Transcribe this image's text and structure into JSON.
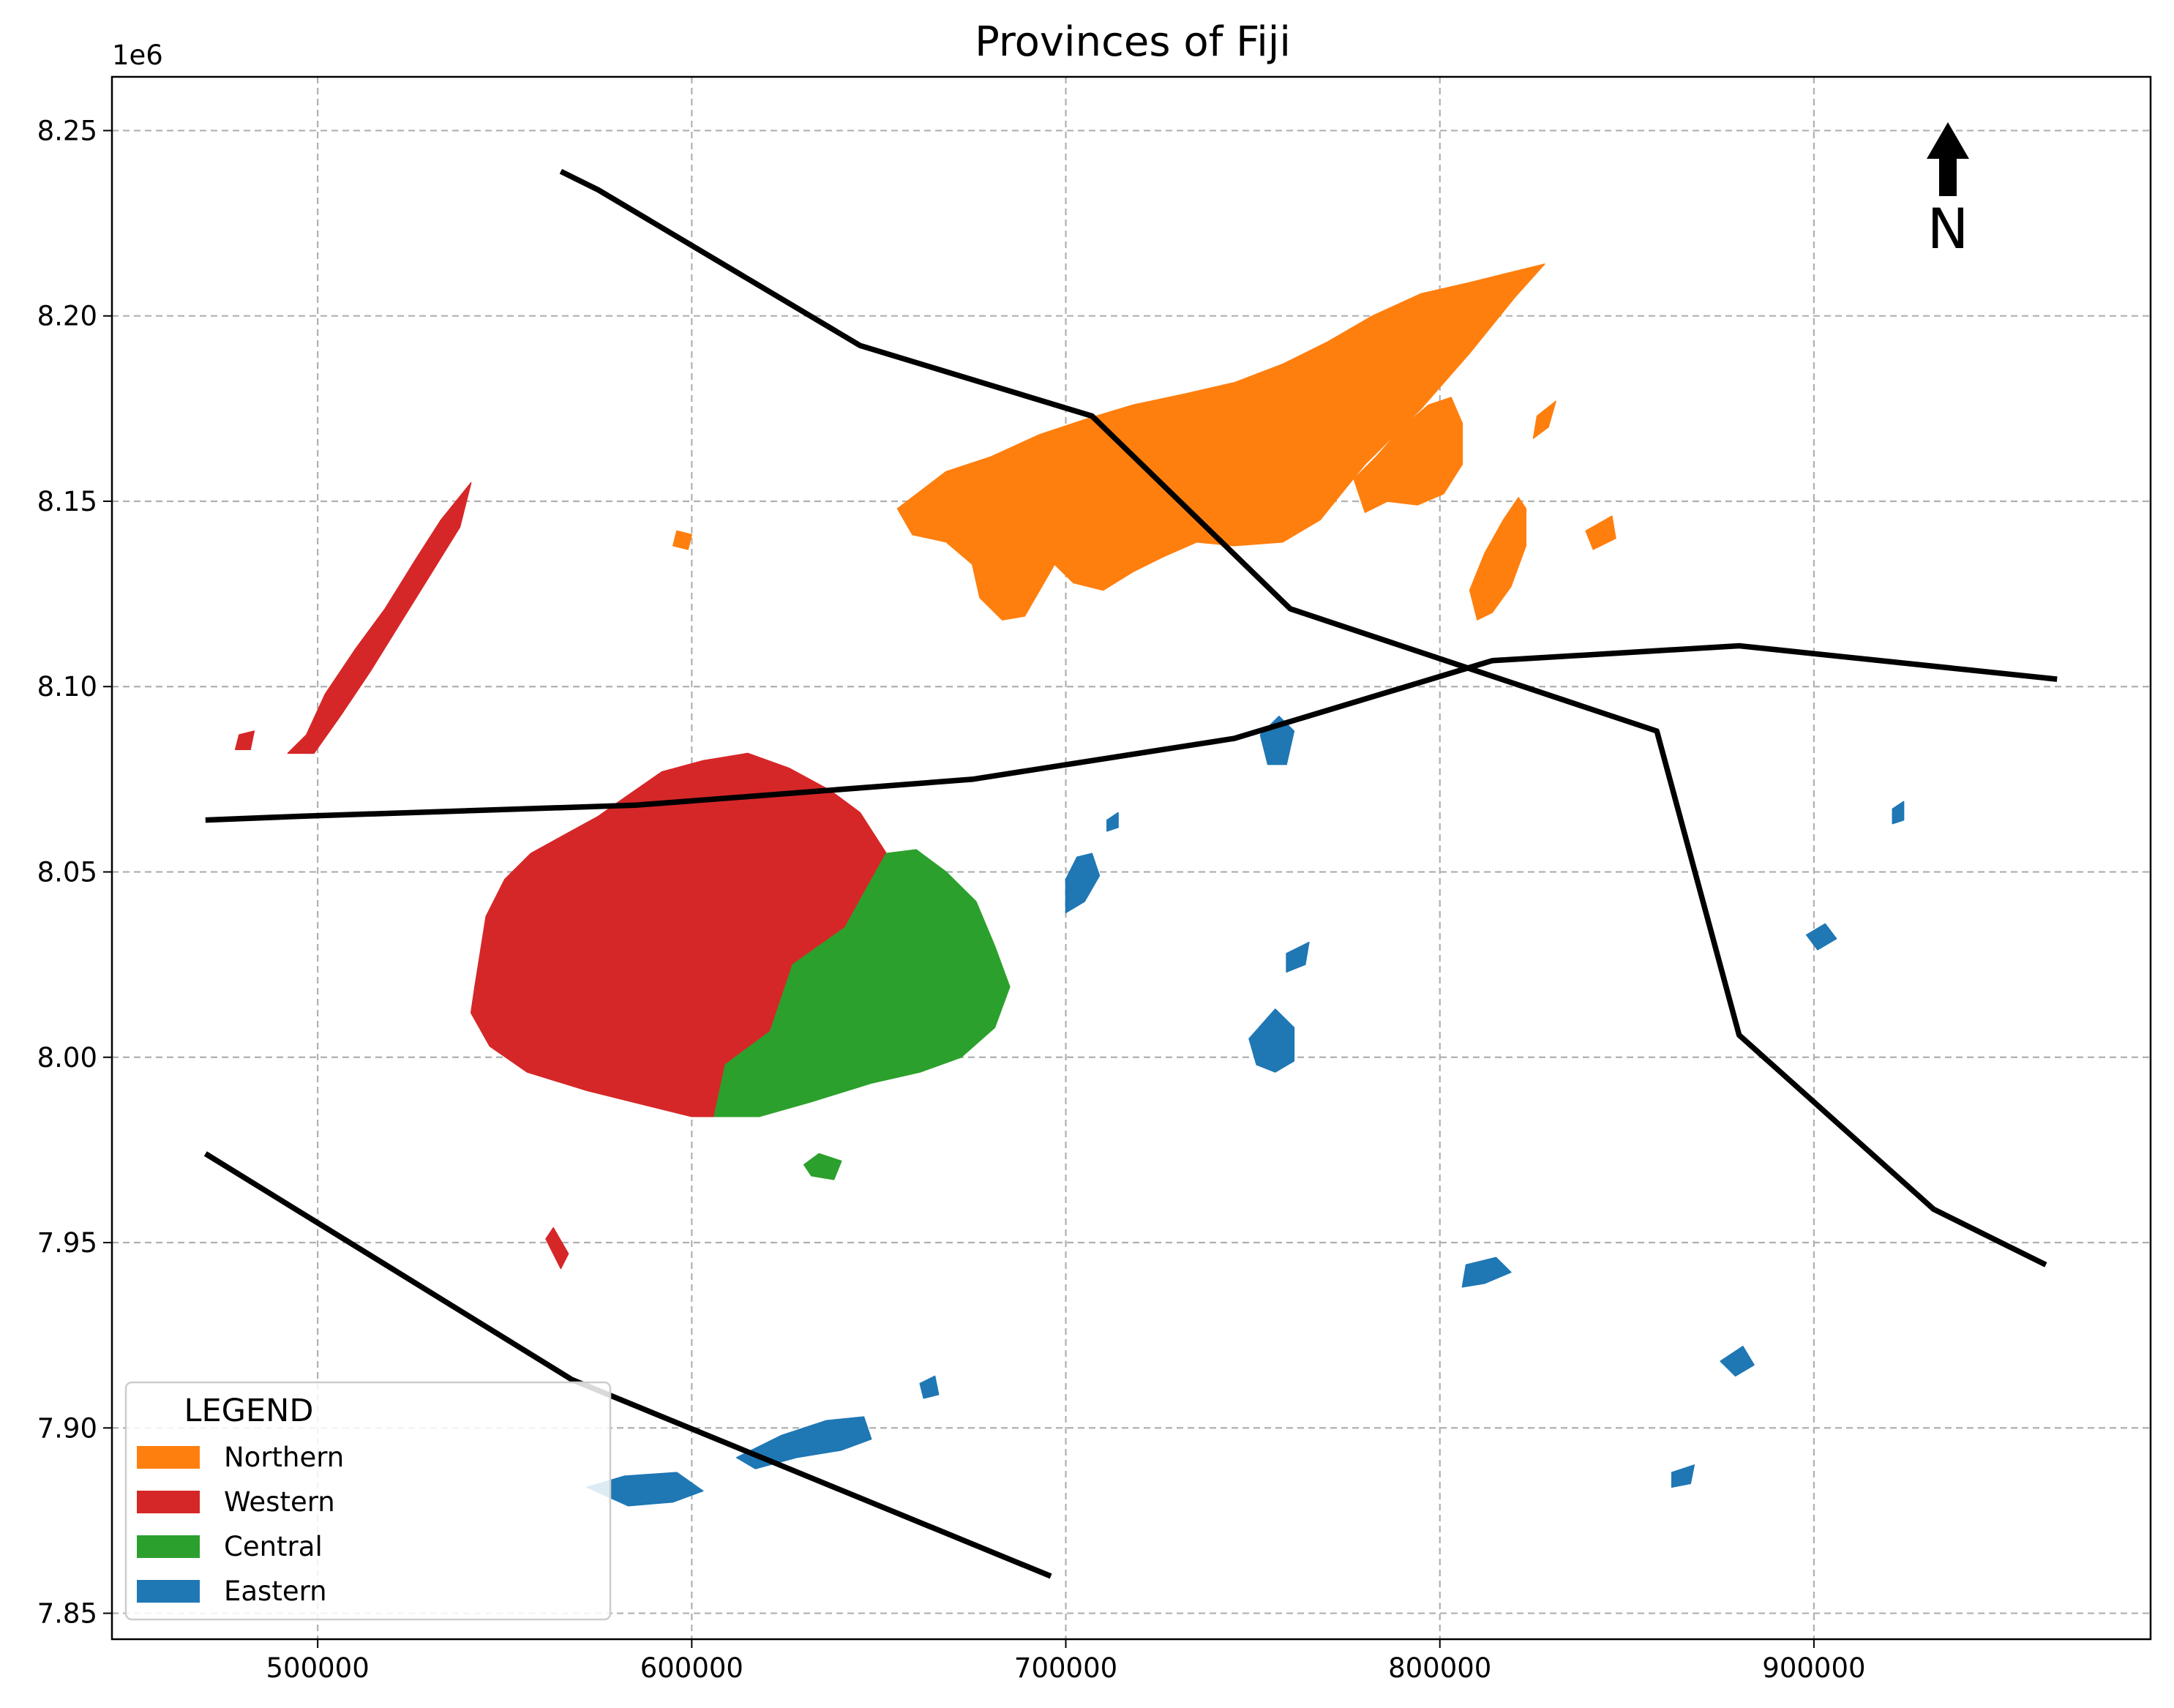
{
  "chart_data": {
    "type": "map",
    "title": "Provinces of Fiji",
    "y_offset_label": "1e6",
    "xlim": [
      445000,
      990000
    ],
    "ylim": [
      7.843,
      8.2645
    ],
    "x_ticks": [
      {
        "value": 500000,
        "label": "500000"
      },
      {
        "value": 600000,
        "label": "600000"
      },
      {
        "value": 700000,
        "label": "700000"
      },
      {
        "value": 800000,
        "label": "800000"
      },
      {
        "value": 900000,
        "label": "900000"
      }
    ],
    "y_ticks": [
      {
        "value": 7.85,
        "label": "7.85"
      },
      {
        "value": 7.9,
        "label": "7.90"
      },
      {
        "value": 7.95,
        "label": "7.95"
      },
      {
        "value": 8.0,
        "label": "8.00"
      },
      {
        "value": 8.05,
        "label": "8.05"
      },
      {
        "value": 8.1,
        "label": "8.10"
      },
      {
        "value": 8.15,
        "label": "8.15"
      },
      {
        "value": 8.2,
        "label": "8.20"
      },
      {
        "value": 8.25,
        "label": "8.25"
      }
    ],
    "grid": true,
    "legend": {
      "title": "LEGEND",
      "placement": "lower-left",
      "entries": [
        {
          "label": "Northern",
          "color": "#ff7f0e"
        },
        {
          "label": "Western",
          "color": "#d62728"
        },
        {
          "label": "Central",
          "color": "#2ca02c"
        },
        {
          "label": "Eastern",
          "color": "#1f77b4"
        }
      ]
    },
    "north_arrow": {
      "label": "N",
      "placement": "top-right"
    },
    "lines": [
      {
        "color": "#000000",
        "points": [
          [
            565000,
            8.239
          ],
          [
            575000,
            8.234
          ],
          [
            645000,
            8.192
          ],
          [
            707000,
            8.173
          ],
          [
            760000,
            8.121
          ],
          [
            858000,
            8.088
          ],
          [
            880000,
            8.006
          ],
          [
            932000,
            7.959
          ],
          [
            962000,
            7.944
          ]
        ]
      },
      {
        "color": "#000000",
        "points": [
          [
            470000,
            8.064
          ],
          [
            495000,
            8.065
          ],
          [
            585000,
            8.068
          ],
          [
            675000,
            8.075
          ],
          [
            745000,
            8.086
          ],
          [
            814000,
            8.107
          ],
          [
            880000,
            8.111
          ],
          [
            965000,
            8.102
          ]
        ]
      },
      {
        "color": "#000000",
        "points": [
          [
            470000,
            7.974
          ],
          [
            568000,
            7.913
          ],
          [
            696000,
            7.86
          ]
        ]
      }
    ],
    "regions": [
      {
        "province": "Northern",
        "color": "#ff7f0e",
        "rings": [
          [
            [
              655000,
              8.148
            ],
            [
              668000,
              8.158
            ],
            [
              680000,
              8.162
            ],
            [
              693000,
              8.168
            ],
            [
              705000,
              8.172
            ],
            [
              718000,
              8.176
            ],
            [
              732000,
              8.179
            ],
            [
              745000,
              8.182
            ],
            [
              758000,
              8.187
            ],
            [
              770000,
              8.193
            ],
            [
              782000,
              8.2
            ],
            [
              795000,
              8.206
            ],
            [
              808000,
              8.209
            ],
            [
              820000,
              8.212
            ],
            [
              828000,
              8.214
            ],
            [
              820000,
              8.205
            ],
            [
              808000,
              8.19
            ],
            [
              795000,
              8.175
            ],
            [
              780000,
              8.16
            ],
            [
              768000,
              8.145
            ],
            [
              758000,
              8.139
            ],
            [
              745000,
              8.138
            ],
            [
              735000,
              8.139
            ],
            [
              726000,
              8.135
            ],
            [
              718000,
              8.131
            ],
            [
              710000,
              8.126
            ],
            [
              702000,
              8.128
            ],
            [
              697000,
              8.133
            ],
            [
              693000,
              8.126
            ],
            [
              689000,
              8.119
            ],
            [
              683000,
              8.118
            ],
            [
              677000,
              8.124
            ],
            [
              675000,
              8.133
            ],
            [
              668000,
              8.139
            ],
            [
              659000,
              8.141
            ]
          ],
          [
            [
              777000,
              8.156
            ],
            [
              783000,
              8.162
            ],
            [
              790000,
              8.17
            ],
            [
              797000,
              8.176
            ],
            [
              803000,
              8.178
            ],
            [
              806000,
              8.171
            ],
            [
              806000,
              8.16
            ],
            [
              801000,
              8.152
            ],
            [
              794000,
              8.149
            ],
            [
              786000,
              8.15
            ],
            [
              780000,
              8.147
            ]
          ],
          [
            [
              808000,
              8.126
            ],
            [
              812000,
              8.136
            ],
            [
              817000,
              8.145
            ],
            [
              821000,
              8.151
            ],
            [
              823000,
              8.148
            ],
            [
              823000,
              8.138
            ],
            [
              819000,
              8.127
            ],
            [
              814000,
              8.12
            ],
            [
              810000,
              8.118
            ]
          ],
          [
            [
              826000,
              8.173
            ],
            [
              831000,
              8.177
            ],
            [
              829000,
              8.17
            ],
            [
              825000,
              8.167
            ]
          ],
          [
            [
              839000,
              8.142
            ],
            [
              846000,
              8.146
            ],
            [
              847000,
              8.14
            ],
            [
              841000,
              8.137
            ]
          ],
          [
            [
              596000,
              8.142
            ],
            [
              600000,
              8.141
            ],
            [
              599000,
              8.137
            ],
            [
              595000,
              8.138
            ]
          ]
        ]
      },
      {
        "province": "Western",
        "color": "#d62728",
        "rings": [
          [
            [
              542000,
              8.019
            ],
            [
              541000,
              8.012
            ],
            [
              546000,
              8.003
            ],
            [
              556000,
              7.996
            ],
            [
              572000,
              7.991
            ],
            [
              588000,
              7.987
            ],
            [
              600000,
              7.984
            ],
            [
              606000,
              7.984
            ],
            [
              609000,
              7.998
            ],
            [
              621000,
              8.007
            ],
            [
              627000,
              8.025
            ],
            [
              641000,
              8.035
            ],
            [
              647000,
              8.046
            ],
            [
              652000,
              8.055
            ],
            [
              645000,
              8.066
            ],
            [
              637000,
              8.072
            ],
            [
              626000,
              8.078
            ],
            [
              615000,
              8.082
            ],
            [
              603000,
              8.08
            ],
            [
              592000,
              8.077
            ],
            [
              582000,
              8.07
            ],
            [
              575000,
              8.065
            ],
            [
              566000,
              8.06
            ],
            [
              557000,
              8.055
            ],
            [
              550000,
              8.048
            ],
            [
              545000,
              8.038
            ]
          ],
          [
            [
              492000,
              8.082
            ],
            [
              497000,
              8.087
            ],
            [
              502000,
              8.098
            ],
            [
              510000,
              8.11
            ],
            [
              518000,
              8.121
            ],
            [
              526000,
              8.134
            ],
            [
              533000,
              8.145
            ],
            [
              541000,
              8.155
            ],
            [
              538000,
              8.143
            ],
            [
              530000,
              8.13
            ],
            [
              522000,
              8.117
            ],
            [
              514000,
              8.104
            ],
            [
              506000,
              8.092
            ],
            [
              499000,
              8.082
            ]
          ],
          [
            [
              479000,
              8.087
            ],
            [
              483000,
              8.088
            ],
            [
              482000,
              8.083
            ],
            [
              478000,
              8.083
            ]
          ],
          [
            [
              563000,
              7.954
            ],
            [
              567000,
              7.947
            ],
            [
              565000,
              7.943
            ],
            [
              561000,
              7.951
            ]
          ]
        ]
      },
      {
        "province": "Central",
        "color": "#2ca02c",
        "rings": [
          [
            [
              606000,
              7.984
            ],
            [
              618000,
              7.984
            ],
            [
              632000,
              7.988
            ],
            [
              648000,
              7.993
            ],
            [
              661000,
              7.996
            ],
            [
              672000,
              8.0
            ],
            [
              681000,
              8.008
            ],
            [
              685000,
              8.019
            ],
            [
              681000,
              8.03
            ],
            [
              676000,
              8.042
            ],
            [
              668000,
              8.05
            ],
            [
              660000,
              8.056
            ],
            [
              652000,
              8.055
            ],
            [
              647000,
              8.046
            ],
            [
              641000,
              8.035
            ],
            [
              627000,
              8.025
            ],
            [
              621000,
              8.007
            ],
            [
              609000,
              7.998
            ]
          ],
          [
            [
              632000,
              7.968
            ],
            [
              638000,
              7.967
            ],
            [
              640000,
              7.972
            ],
            [
              634000,
              7.974
            ],
            [
              630000,
              7.971
            ]
          ]
        ]
      },
      {
        "province": "Eastern",
        "color": "#1f77b4",
        "rings": [
          [
            [
              700000,
              8.039
            ],
            [
              705000,
              8.042
            ],
            [
              709000,
              8.049
            ],
            [
              707000,
              8.055
            ],
            [
              703000,
              8.054
            ],
            [
              700000,
              8.048
            ]
          ],
          [
            [
              752000,
              8.087
            ],
            [
              757000,
              8.092
            ],
            [
              761000,
              8.088
            ],
            [
              759000,
              8.079
            ],
            [
              754000,
              8.079
            ]
          ],
          [
            [
              749000,
              8.005
            ],
            [
              756000,
              8.013
            ],
            [
              761000,
              8.008
            ],
            [
              761000,
              7.999
            ],
            [
              756000,
              7.996
            ],
            [
              751000,
              7.998
            ]
          ],
          [
            [
              759000,
              8.028
            ],
            [
              765000,
              8.031
            ],
            [
              764000,
              8.025
            ],
            [
              759000,
              8.023
            ]
          ],
          [
            [
              807000,
              7.944
            ],
            [
              815000,
              7.946
            ],
            [
              819000,
              7.942
            ],
            [
              812000,
              7.939
            ],
            [
              806000,
              7.938
            ]
          ],
          [
            [
              862000,
              7.888
            ],
            [
              868000,
              7.89
            ],
            [
              867000,
              7.885
            ],
            [
              862000,
              7.884
            ]
          ],
          [
            [
              875000,
              7.918
            ],
            [
              881000,
              7.922
            ],
            [
              884000,
              7.917
            ],
            [
              879000,
              7.914
            ]
          ],
          [
            [
              898000,
              8.033
            ],
            [
              903000,
              8.036
            ],
            [
              906000,
              8.032
            ],
            [
              901000,
              8.029
            ]
          ],
          [
            [
              612000,
              7.892
            ],
            [
              624000,
              7.898
            ],
            [
              636000,
              7.902
            ],
            [
              646000,
              7.903
            ],
            [
              648000,
              7.897
            ],
            [
              640000,
              7.894
            ],
            [
              628000,
              7.892
            ],
            [
              617000,
              7.889
            ]
          ],
          [
            [
              572000,
              7.884
            ],
            [
              582000,
              7.887
            ],
            [
              596000,
              7.888
            ],
            [
              603000,
              7.883
            ],
            [
              595000,
              7.88
            ],
            [
              583000,
              7.879
            ]
          ],
          [
            [
              661000,
              7.912
            ],
            [
              665000,
              7.914
            ],
            [
              666000,
              7.909
            ],
            [
              662000,
              7.908
            ]
          ],
          [
            [
              711000,
              8.064
            ],
            [
              714000,
              8.066
            ],
            [
              714000,
              8.062
            ],
            [
              711000,
              8.061
            ]
          ],
          [
            [
              921000,
              8.067
            ],
            [
              924000,
              8.069
            ],
            [
              924000,
              8.064
            ],
            [
              921000,
              8.063
            ]
          ]
        ]
      }
    ]
  }
}
